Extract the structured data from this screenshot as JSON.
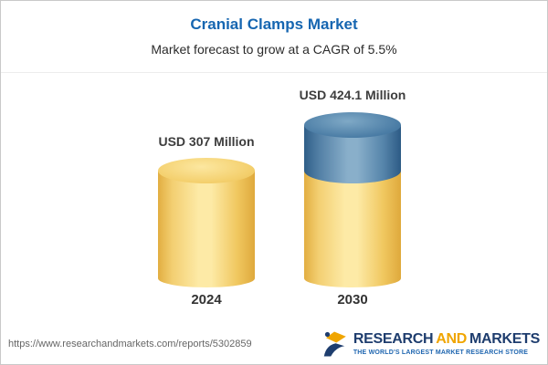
{
  "header": {
    "title": "Cranial Clamps Market",
    "subtitle": "Market forecast to grow at a CAGR of 5.5%"
  },
  "chart_data": {
    "type": "bar",
    "title": "Cranial Clamps Market",
    "subtitle": "Market forecast to grow at a CAGR of 5.5%",
    "unit": "USD Million",
    "cagr_pct": 5.5,
    "categories": [
      "2024",
      "2030"
    ],
    "bars": [
      {
        "category": "2024",
        "label": "USD 307 Million",
        "value": 307,
        "segments": [
          {
            "color": "yellow",
            "value": 307
          }
        ]
      },
      {
        "category": "2030",
        "label": "USD 424.1 Million",
        "value": 424.1,
        "segments": [
          {
            "color": "blue",
            "value": 117.1
          },
          {
            "color": "yellow",
            "value": 307
          }
        ]
      }
    ],
    "ylim": [
      0,
      424.1
    ],
    "grid": false,
    "legend": "none"
  },
  "footer": {
    "report_url": "https://www.researchandmarkets.com/reports/5302859",
    "logo": {
      "word_research": "RESEARCH",
      "word_and": "AND",
      "word_markets": "MARKETS",
      "tagline": "THE WORLD'S LARGEST MARKET RESEARCH STORE"
    }
  },
  "colors": {
    "title_blue": "#1666b1",
    "text_dark": "#333333",
    "bar_yellow_light": "#fdeaa6",
    "bar_yellow_dark": "#e2ae41",
    "bar_blue_light": "#89afca",
    "bar_blue_dark": "#2f5e88",
    "logo_navy": "#1e3d6e",
    "logo_orange": "#f0a500",
    "url_gray": "#666666"
  }
}
